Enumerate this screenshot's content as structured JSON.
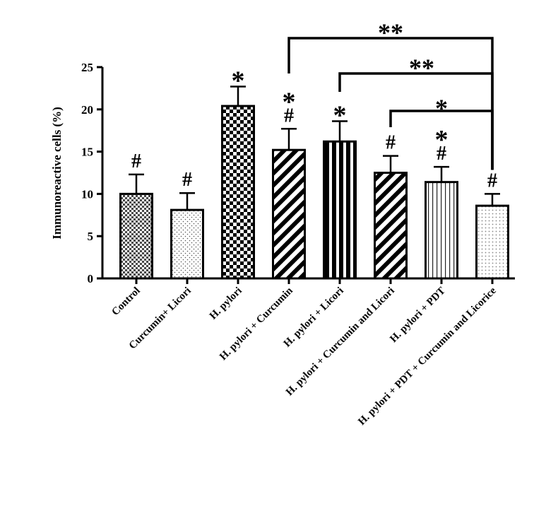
{
  "chart_data": {
    "type": "bar",
    "title": "",
    "xlabel": "",
    "ylabel": "Immunoreactive cells (%)",
    "ylim": [
      0,
      25
    ],
    "yticks": [
      0,
      5,
      10,
      15,
      20,
      25
    ],
    "grid": false,
    "categories": [
      "Control",
      "Curcumin+ Licori",
      "H. pylori",
      "H. pylori + Curcumin",
      "H. pylori + Licori",
      "H. pylori + Curcumin and Licori",
      "H. pylori + PDT",
      "H. pylori + PDT + Curcumin and Licorice"
    ],
    "values": [
      10.0,
      8.1,
      20.4,
      15.2,
      16.2,
      12.5,
      11.4,
      8.6
    ],
    "errors": [
      2.3,
      2.0,
      2.3,
      2.5,
      2.4,
      2.0,
      1.8,
      1.4
    ],
    "patterns": [
      "checker-fine",
      "dots",
      "checker-coarse",
      "diagonal-stripes",
      "vertical-stripes-thick",
      "diagonal-stripes",
      "vertical-stripes-thin",
      "dots-light"
    ],
    "annotations": [
      [
        "#"
      ],
      [
        "#"
      ],
      [
        "*"
      ],
      [
        "*",
        "#"
      ],
      [
        "*"
      ],
      [
        "#"
      ],
      [
        "*",
        "#"
      ],
      [
        "#"
      ]
    ],
    "comparisons": [
      {
        "from": 3,
        "to": 7,
        "label": "**"
      },
      {
        "from": 4,
        "to": 7,
        "label": "**"
      },
      {
        "from": 5,
        "to": 7,
        "label": "*"
      }
    ]
  }
}
